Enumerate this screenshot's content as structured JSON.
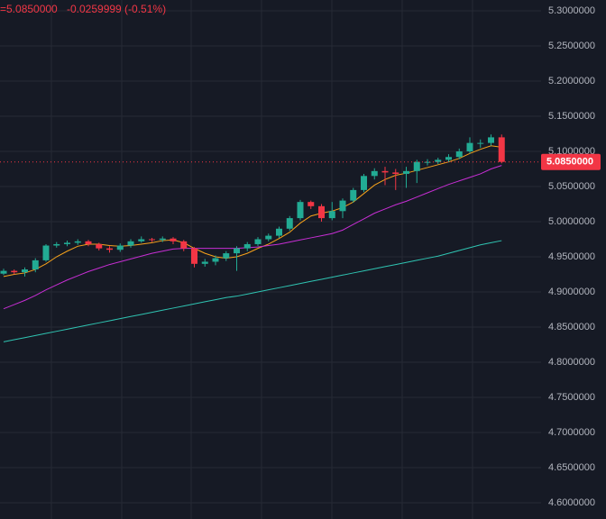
{
  "chart_data": {
    "type": "candlestick",
    "header": {
      "price": "=5.0850000",
      "change": "-0.0259999 (-0.51%)"
    },
    "up_color": "#22ab94",
    "down_color": "#f23645",
    "grid": true,
    "ylim": [
      4.6,
      5.3
    ],
    "yticks": [
      {
        "value": 4.6,
        "label": "4.6000000"
      },
      {
        "value": 4.65,
        "label": "4.6500000"
      },
      {
        "value": 4.7,
        "label": "4.7000000"
      },
      {
        "value": 4.75,
        "label": "4.7500000"
      },
      {
        "value": 4.8,
        "label": "4.8000000"
      },
      {
        "value": 4.85,
        "label": "4.8500000"
      },
      {
        "value": 4.9,
        "label": "4.9000000"
      },
      {
        "value": 4.95,
        "label": "4.9500000"
      },
      {
        "value": 5.0,
        "label": "5.0000000"
      },
      {
        "value": 5.05,
        "label": "5.0500000"
      },
      {
        "value": 5.1,
        "label": "5.1000000"
      },
      {
        "value": 5.15,
        "label": "5.1500000"
      },
      {
        "value": 5.2,
        "label": "5.2000000"
      },
      {
        "value": 5.25,
        "label": "5.2500000"
      },
      {
        "value": 5.3,
        "label": "5.3000000"
      }
    ],
    "last_price": {
      "value": 5.085,
      "label": "5.0850000"
    },
    "open": [
      4.926,
      4.93,
      4.928,
      4.932,
      4.945,
      4.966,
      4.968,
      4.97,
      4.972,
      4.968,
      4.962,
      4.96,
      4.966,
      4.972,
      4.975,
      4.974,
      4.976,
      4.972,
      4.962,
      4.94,
      4.943,
      4.948,
      4.955,
      4.962,
      4.968,
      4.975,
      4.98,
      4.99,
      5.005,
      5.028,
      5.022,
      5.005,
      5.015,
      5.03,
      5.045,
      5.065,
      5.072,
      5.07,
      5.068,
      5.072,
      5.085,
      5.085,
      5.088,
      5.092,
      5.1,
      5.112,
      5.112,
      5.12
    ],
    "high": [
      4.933,
      4.932,
      4.935,
      4.948,
      4.968,
      4.971,
      4.973,
      4.975,
      4.974,
      4.97,
      4.965,
      4.969,
      4.975,
      4.979,
      4.977,
      4.979,
      4.978,
      4.974,
      4.964,
      4.947,
      4.952,
      4.958,
      4.965,
      4.971,
      4.978,
      4.983,
      4.993,
      5.008,
      5.031,
      5.03,
      5.025,
      5.028,
      5.033,
      5.048,
      5.068,
      5.076,
      5.078,
      5.075,
      5.078,
      5.088,
      5.089,
      5.091,
      5.096,
      5.104,
      5.12,
      5.117,
      5.124,
      5.124
    ],
    "low": [
      4.924,
      4.925,
      4.922,
      4.928,
      4.943,
      4.963,
      4.965,
      4.967,
      4.965,
      4.959,
      4.956,
      4.957,
      4.963,
      4.97,
      4.971,
      4.971,
      4.968,
      4.958,
      4.935,
      4.936,
      4.938,
      4.944,
      4.93,
      4.958,
      4.965,
      4.972,
      4.977,
      4.987,
      5.002,
      5.018,
      5.0,
      5.002,
      5.005,
      5.027,
      5.042,
      5.06,
      5.052,
      5.045,
      5.048,
      5.055,
      5.08,
      5.082,
      5.085,
      5.089,
      5.097,
      5.105,
      5.108,
      5.083
    ],
    "close": [
      4.93,
      4.928,
      4.932,
      4.945,
      4.966,
      4.968,
      4.97,
      4.972,
      4.968,
      4.962,
      4.96,
      4.966,
      4.972,
      4.975,
      4.974,
      4.976,
      4.972,
      4.962,
      4.94,
      4.943,
      4.948,
      4.955,
      4.962,
      4.968,
      4.975,
      4.98,
      4.99,
      5.005,
      5.028,
      5.022,
      5.005,
      5.015,
      5.03,
      5.045,
      5.065,
      5.072,
      5.07,
      5.068,
      5.072,
      5.085,
      5.085,
      5.088,
      5.092,
      5.1,
      5.112,
      5.112,
      5.12,
      5.085
    ],
    "lines": [
      {
        "color": "#f7a21b",
        "values": [
          4.922,
          4.925,
          4.927,
          4.932,
          4.94,
          4.95,
          4.958,
          4.965,
          4.968,
          4.968,
          4.966,
          4.965,
          4.966,
          4.968,
          4.97,
          4.973,
          4.974,
          4.97,
          4.962,
          4.955,
          4.95,
          4.948,
          4.95,
          4.955,
          4.962,
          4.968,
          4.976,
          4.985,
          4.998,
          5.008,
          5.012,
          5.015,
          5.02,
          5.028,
          5.04,
          5.052,
          5.06,
          5.066,
          5.069,
          5.073,
          5.077,
          5.081,
          5.085,
          5.09,
          5.097,
          5.103,
          5.108,
          5.106
        ]
      },
      {
        "color": "#c72ed4",
        "values": [
          4.876,
          4.882,
          4.888,
          4.895,
          4.903,
          4.91,
          4.917,
          4.923,
          4.929,
          4.934,
          4.939,
          4.943,
          4.947,
          4.951,
          4.955,
          4.958,
          4.961,
          4.962,
          4.962,
          4.962,
          4.962,
          4.962,
          4.962,
          4.963,
          4.964,
          4.966,
          4.968,
          4.971,
          4.974,
          4.977,
          4.98,
          4.983,
          4.988,
          4.996,
          5.004,
          5.012,
          5.018,
          5.024,
          5.029,
          5.035,
          5.041,
          5.047,
          5.053,
          5.058,
          5.063,
          5.068,
          5.075,
          5.08
        ]
      },
      {
        "color": "#2fc4b2",
        "values": [
          4.829,
          4.832,
          4.835,
          4.838,
          4.841,
          4.844,
          4.847,
          4.85,
          4.853,
          4.856,
          4.859,
          4.862,
          4.865,
          4.868,
          4.871,
          4.874,
          4.877,
          4.88,
          4.883,
          4.886,
          4.889,
          4.892,
          4.894,
          4.897,
          4.9,
          4.903,
          4.906,
          4.909,
          4.912,
          4.915,
          4.918,
          4.921,
          4.924,
          4.927,
          4.93,
          4.933,
          4.936,
          4.939,
          4.942,
          4.945,
          4.948,
          4.951,
          4.955,
          4.959,
          4.963,
          4.967,
          4.97,
          4.973
        ]
      }
    ]
  }
}
